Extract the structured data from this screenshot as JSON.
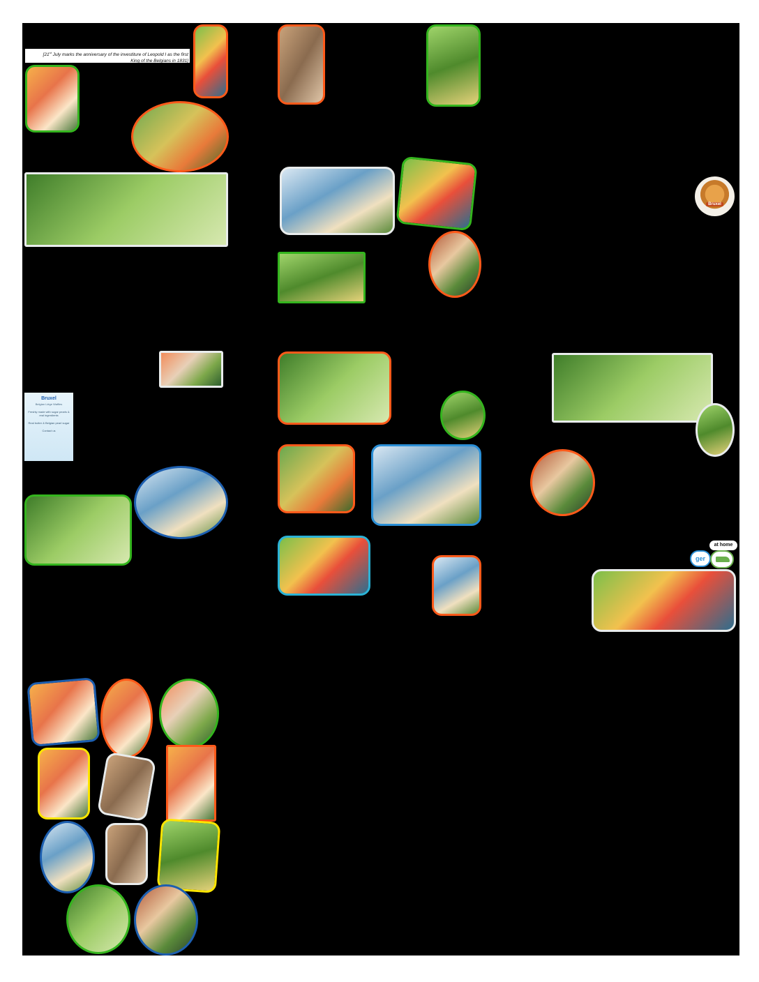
{
  "caption": {
    "line1_prefix": "[21",
    "line1_sup": "st",
    "line1_rest": " July marks the anniversary of the investiture of Leopold I as the first",
    "line2": "King of the Belgians in 1831]"
  },
  "waffle_badge": {
    "label": "Bruxel"
  },
  "flyer": {
    "brand": "Bruxel",
    "subtitle": "Belgian Liège Waffles",
    "line1": "Freshly made with sugar pearls & real ingredients",
    "line2": "Real butter & Belgian pearl sugar",
    "contact": "Contact us"
  },
  "logo": {
    "top_text": "at home",
    "mark_text": "ger"
  },
  "colors": {
    "orange": "#ff5a1a",
    "green": "#34b51e",
    "blue": "#2b8fd6",
    "dark_blue": "#1d5fb0",
    "yellow": "#ffe600",
    "background": "#000000"
  }
}
